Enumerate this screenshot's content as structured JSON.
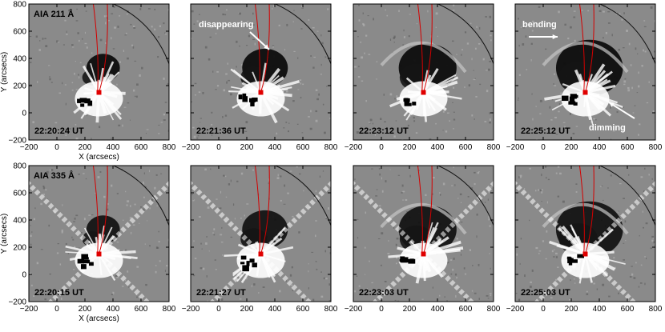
{
  "rows": [
    {
      "instrument": "AIA 211 Å",
      "show_xlabel": true,
      "times": [
        "22:20:24 UT",
        "22:21:36 UT",
        "22:23:12 UT",
        "22:25:12 UT"
      ]
    },
    {
      "instrument": "AIA 335 Å",
      "show_xlabel": true,
      "times": [
        "22:20:15 UT",
        "22:21:27 UT",
        "22:23:03 UT",
        "22:25:03 UT"
      ]
    }
  ],
  "axes": {
    "xlabel": "X (arcsecs)",
    "ylabel": "Y (arcsecs)",
    "xticks": [
      -200,
      0,
      200,
      400,
      600,
      800
    ],
    "yticks": [
      -200,
      0,
      200,
      400,
      600,
      800
    ],
    "xlim": [
      -200,
      800
    ],
    "ylim": [
      -200,
      800
    ]
  },
  "annotations": [
    {
      "row": 0,
      "panel": 1,
      "text": "disappearing"
    },
    {
      "row": 0,
      "panel": 3,
      "text": "bending"
    },
    {
      "row": 0,
      "panel": 3,
      "text": "dimming"
    }
  ],
  "colors": {
    "background_gray": "#8a8a8a",
    "loop_red": "#d40000",
    "footpoint_red": "#e00000",
    "label_white": "#ffffff",
    "label_black": "#000000"
  }
}
